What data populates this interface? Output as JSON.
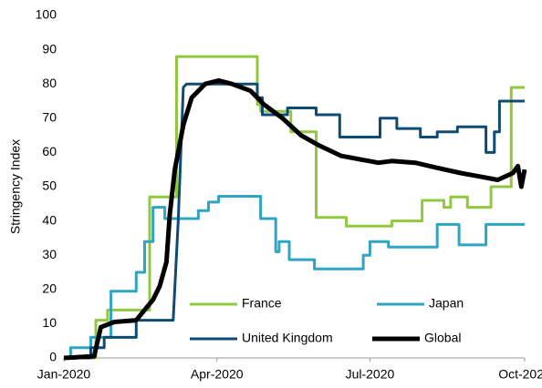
{
  "chart_data": {
    "type": "line",
    "ylabel": "Stringency Index",
    "xlim": [
      0,
      274
    ],
    "xticks": [
      {
        "value": 0,
        "label": "Jan-2020"
      },
      {
        "value": 91,
        "label": "Apr-2020"
      },
      {
        "value": 182,
        "label": "Jul-2020"
      },
      {
        "value": 274,
        "label": "Oct-2020"
      }
    ],
    "ylim": [
      0,
      100
    ],
    "yticks": [
      0,
      10,
      20,
      30,
      40,
      50,
      60,
      70,
      80,
      90,
      100
    ],
    "grid": false,
    "series": [
      {
        "name": "France",
        "color": "#92c83e",
        "width": 3,
        "x": [
          0,
          19,
          19,
          26,
          26,
          51,
          51,
          67,
          67,
          115,
          115,
          117,
          117,
          135,
          135,
          150,
          150,
          168,
          168,
          195,
          195,
          213,
          213,
          226,
          226,
          230,
          230,
          240,
          240,
          254,
          254,
          266,
          266,
          274
        ],
        "values": [
          0,
          0,
          11,
          11,
          14,
          14,
          47,
          47,
          88,
          88,
          74,
          74,
          72,
          72,
          66,
          66,
          41,
          41,
          38.5,
          38.5,
          40,
          40,
          46,
          46,
          44,
          44,
          47,
          47,
          44,
          44,
          50,
          50,
          79,
          79
        ]
      },
      {
        "name": "Japan",
        "color": "#2fa4c4",
        "width": 3,
        "x": [
          0,
          4,
          4,
          16,
          16,
          28,
          28,
          43,
          43,
          48,
          48,
          53,
          53,
          60,
          60,
          80,
          80,
          86,
          86,
          92,
          92,
          117,
          117,
          126,
          126,
          128,
          128,
          134,
          134,
          149,
          149,
          178,
          178,
          182,
          182,
          193,
          193,
          222,
          222,
          235,
          235,
          251,
          251,
          274
        ],
        "values": [
          0,
          0,
          3,
          3,
          6,
          6,
          19.5,
          19.5,
          25,
          25,
          34,
          34,
          44,
          44,
          40.7,
          40.7,
          43,
          43,
          45.5,
          45.5,
          47.2,
          47.2,
          40.7,
          40.7,
          31,
          31,
          34,
          34,
          28.7,
          28.7,
          26,
          26,
          30,
          30,
          34,
          34,
          32.4,
          32.4,
          39,
          39,
          33,
          33,
          39,
          39
        ]
      },
      {
        "name": "United Kingdom",
        "color": "#0f4c75",
        "width": 3,
        "x": [
          0,
          16,
          16,
          24,
          24,
          43,
          43,
          65,
          68,
          71,
          73,
          115,
          115,
          118,
          118,
          133,
          133,
          150,
          150,
          164,
          164,
          188,
          188,
          198,
          198,
          212,
          212,
          222,
          222,
          234,
          234,
          251,
          251,
          256,
          256,
          259,
          259,
          274
        ],
        "values": [
          0,
          0,
          3,
          3,
          6,
          6,
          11,
          11,
          40,
          79,
          80,
          80,
          76,
          76,
          71,
          71,
          73,
          73,
          71,
          71,
          64.5,
          64.5,
          70,
          70,
          67,
          67,
          64.5,
          64.5,
          66,
          66,
          67.5,
          67.5,
          60,
          60,
          66,
          66,
          75,
          75
        ]
      },
      {
        "name": "Global",
        "color": "#000000",
        "width": 5,
        "x": [
          0,
          18,
          22,
          30,
          43,
          53,
          57,
          61,
          63,
          66,
          71,
          76,
          84,
          92,
          100,
          111,
          119,
          130,
          141,
          152,
          165,
          176,
          187,
          195,
          209,
          222,
          236,
          247,
          258,
          267,
          270,
          272,
          274
        ],
        "values": [
          0,
          0.5,
          9,
          10.5,
          11,
          17,
          21,
          28,
          42,
          55,
          68,
          76,
          80,
          81,
          80,
          78,
          74,
          70,
          65,
          62,
          59,
          58,
          57,
          57.5,
          57,
          55.5,
          54,
          53,
          52,
          54,
          56,
          50,
          55
        ]
      }
    ]
  }
}
